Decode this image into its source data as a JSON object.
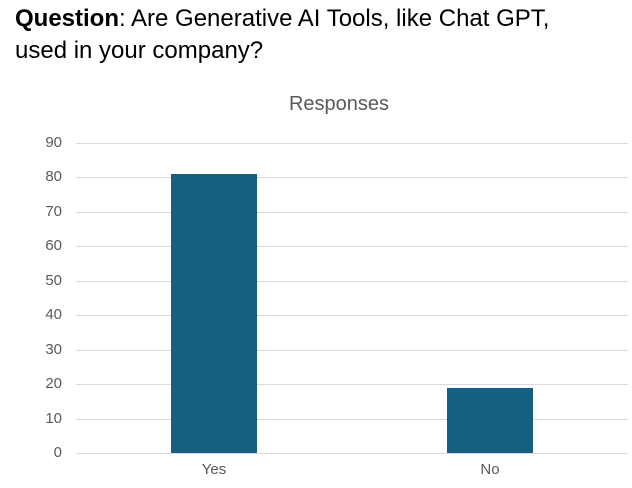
{
  "question": {
    "bold": "Question",
    "line1_rest": ": Are Generative AI Tools, like Chat GPT,",
    "line2": "used in your company?"
  },
  "chart_data": {
    "type": "bar",
    "title": "Responses",
    "categories": [
      "Yes",
      "No"
    ],
    "values": [
      81,
      19
    ],
    "xlabel": "",
    "ylabel": "",
    "ylim": [
      0,
      90
    ],
    "ytick_step": 10,
    "yticks": [
      0,
      10,
      20,
      30,
      40,
      50,
      60,
      70,
      80,
      90
    ],
    "grid": true,
    "legend": false,
    "colors": {
      "bar": "#156082",
      "gridline": "#D9D9D9",
      "axis_text": "#595959",
      "title_text": "#595959"
    }
  }
}
